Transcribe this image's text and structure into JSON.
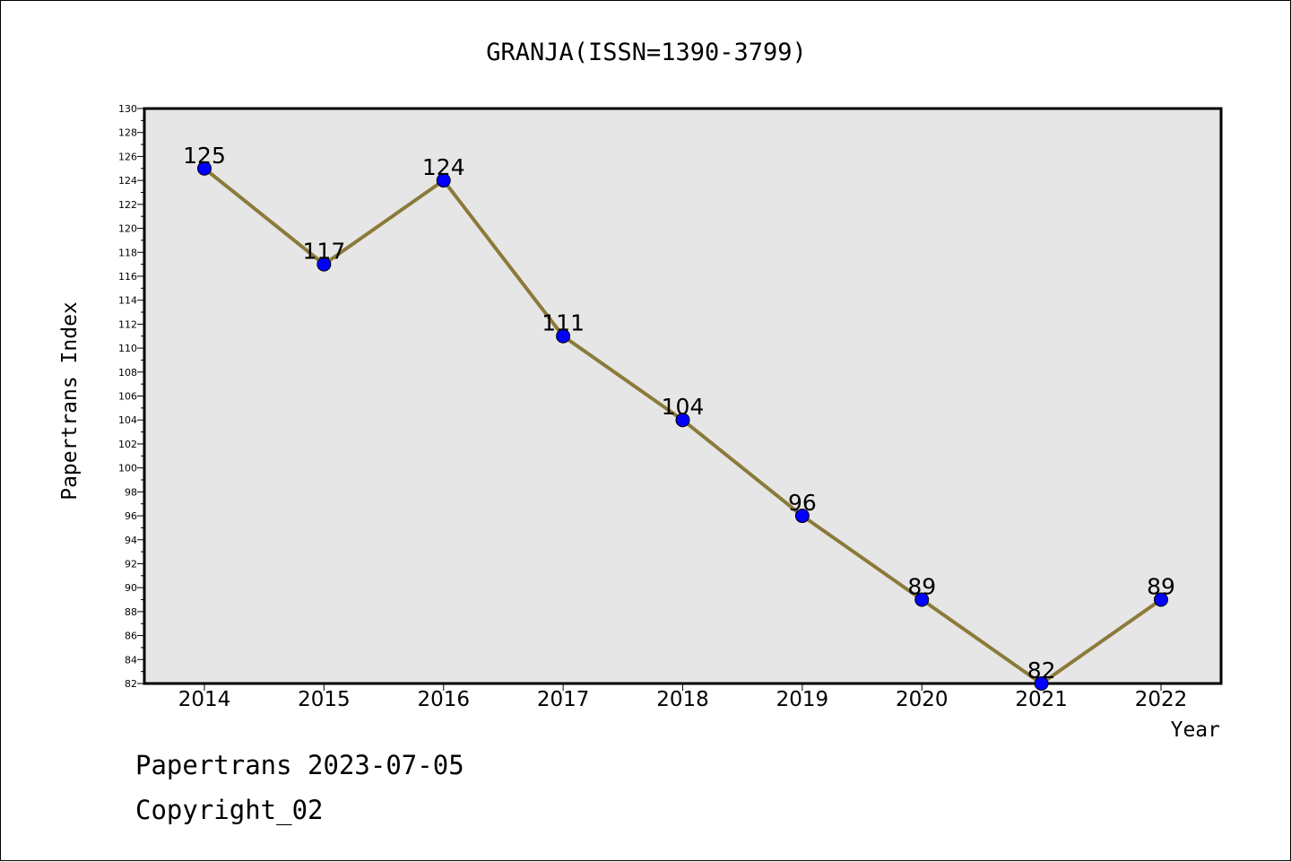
{
  "chart_data": {
    "type": "line",
    "title": "GRANJA(ISSN=1390-3799)",
    "xlabel": "Year",
    "ylabel": "Papertrans Index",
    "categories": [
      "2014",
      "2015",
      "2016",
      "2017",
      "2018",
      "2019",
      "2020",
      "2021",
      "2022"
    ],
    "series": [
      {
        "values": [
          125,
          117,
          124,
          111,
          104,
          96,
          89,
          82,
          89
        ]
      }
    ],
    "ylim": [
      82,
      130
    ],
    "yticks": [
      82,
      84,
      86,
      88,
      90,
      92,
      94,
      96,
      98,
      100,
      102,
      104,
      106,
      108,
      110,
      112,
      114,
      116,
      118,
      120,
      122,
      124,
      126,
      128,
      130
    ],
    "grid": false,
    "legend": "none",
    "colors": {
      "line": "#8b7a3a",
      "marker": "#0000ff",
      "plot_background": "#e6e6e6"
    }
  },
  "footer": {
    "line1": "Papertrans 2023-07-05",
    "line2": "Copyright_02"
  }
}
